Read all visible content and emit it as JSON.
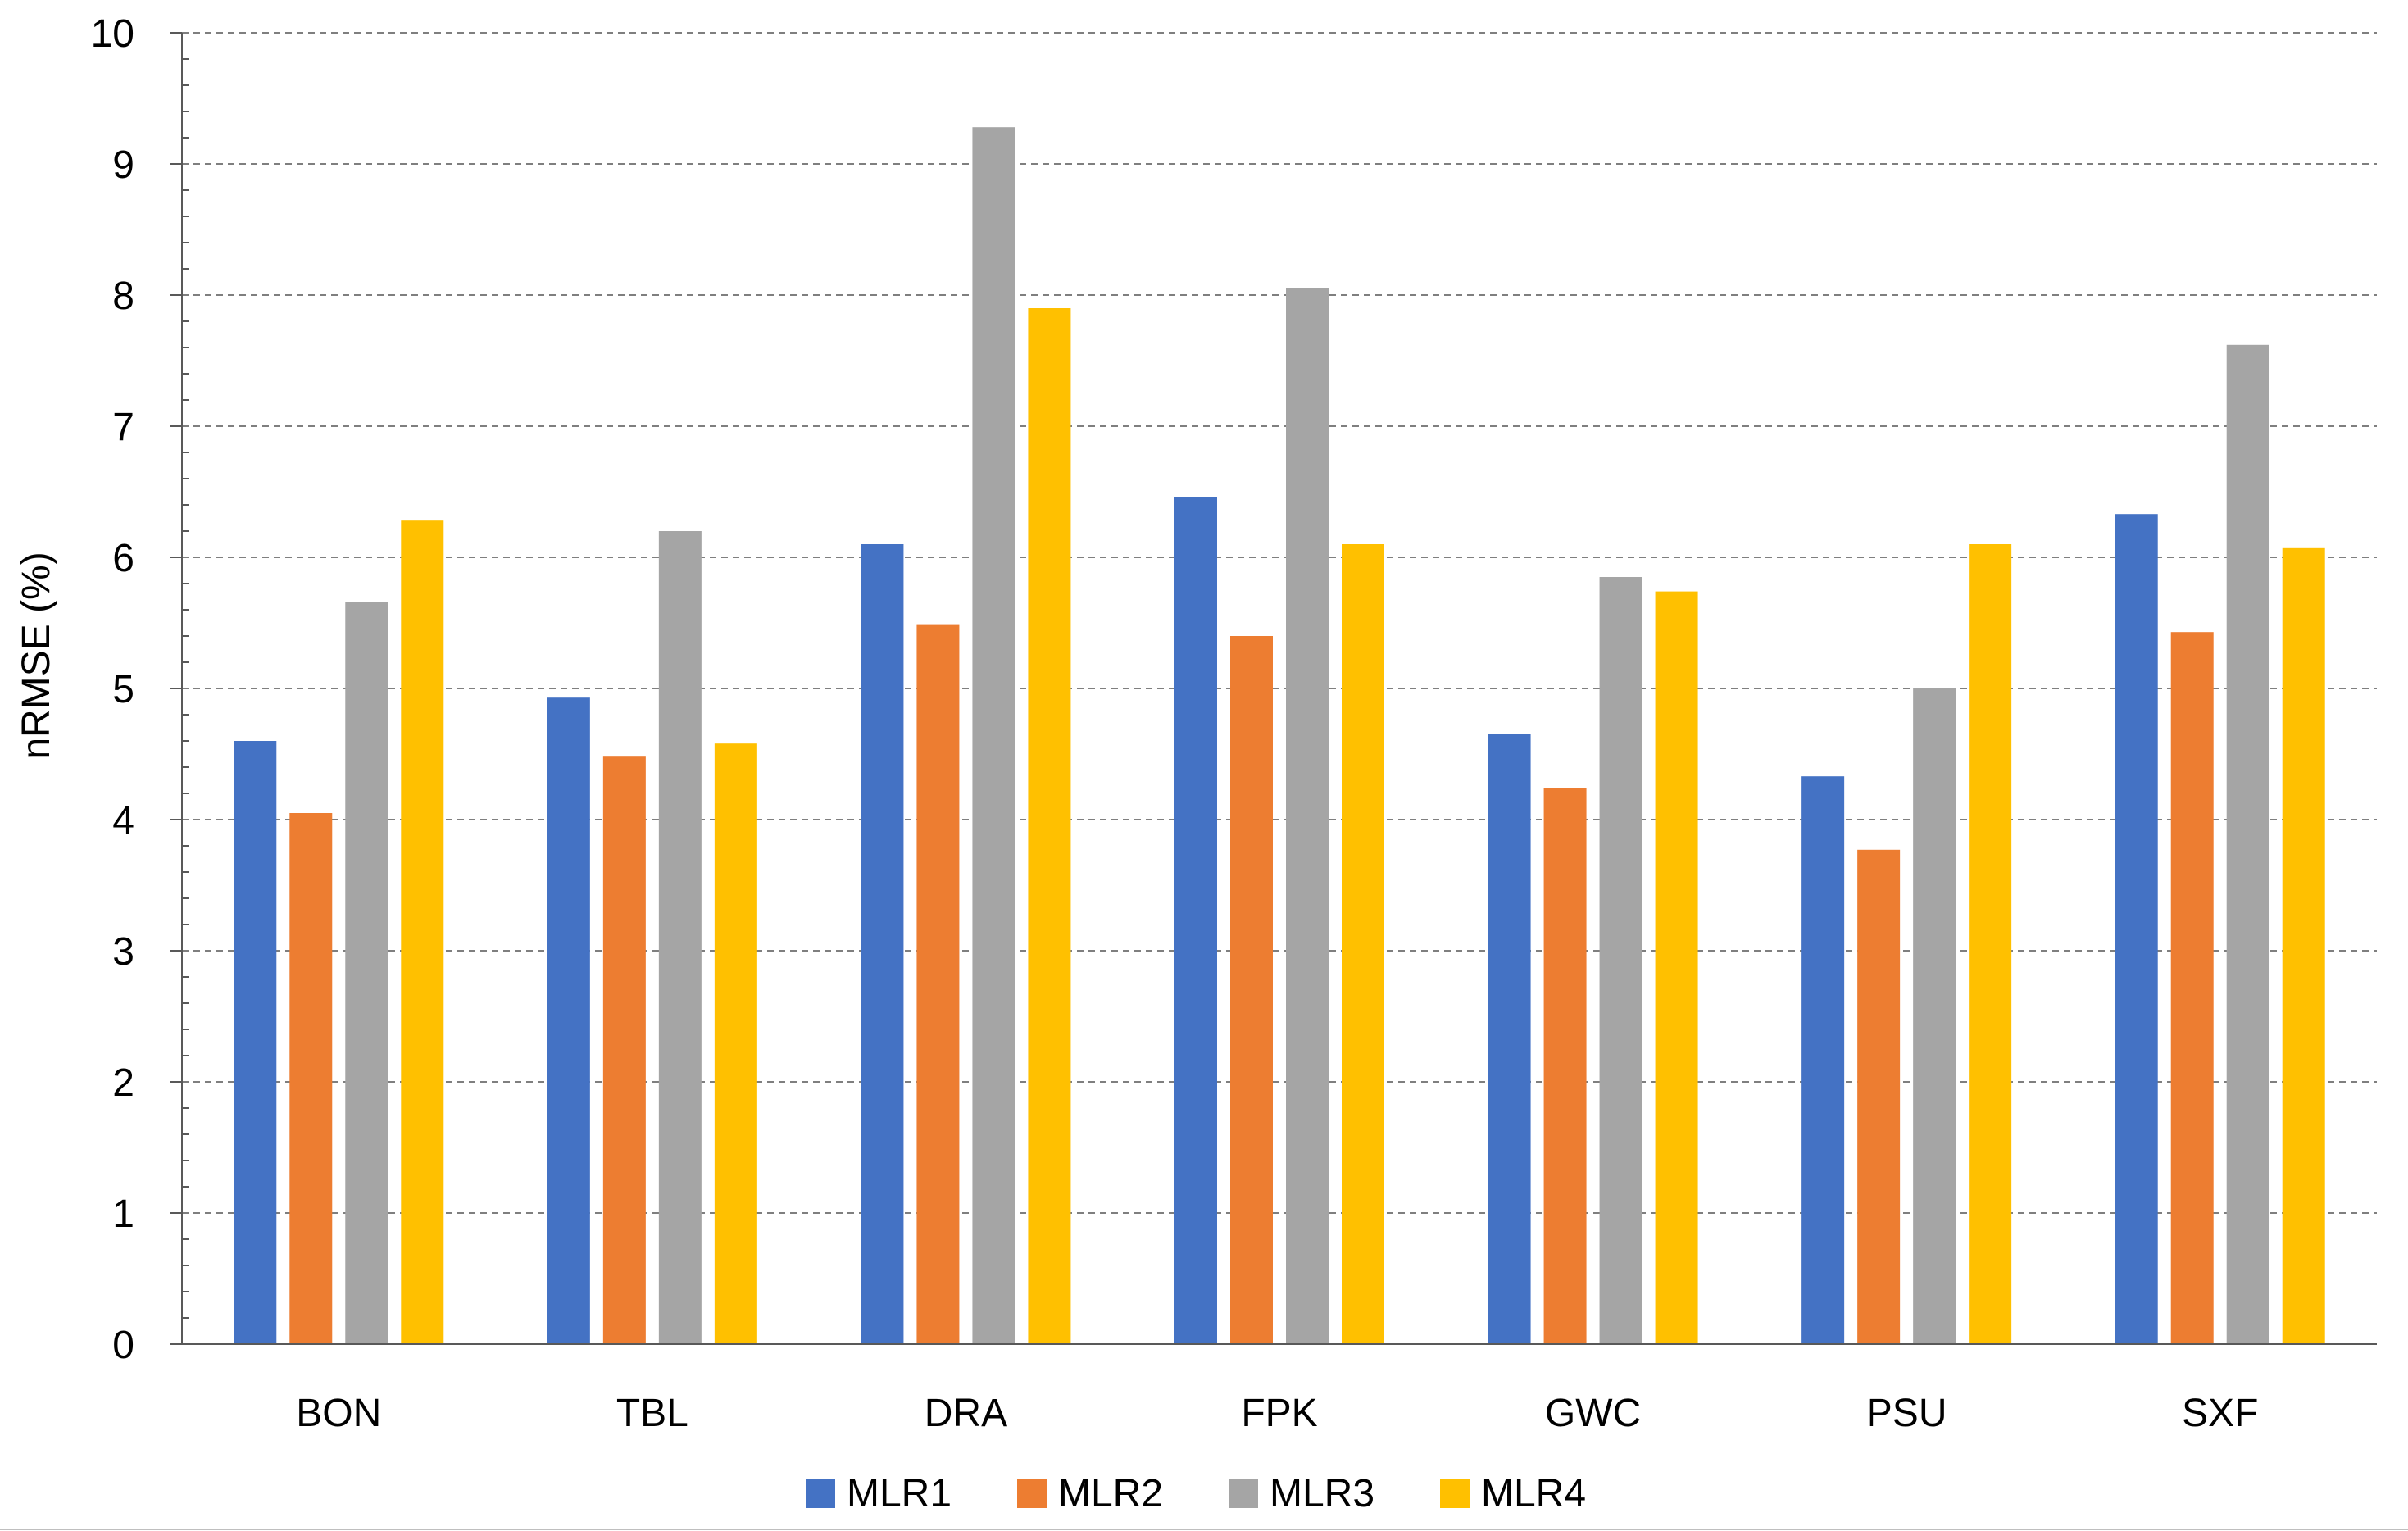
{
  "chart_data": {
    "type": "bar",
    "title": "",
    "xlabel": "",
    "ylabel": "nRMSE (%)",
    "ylim": [
      0,
      10
    ],
    "yticks": [
      0,
      1,
      2,
      3,
      4,
      5,
      6,
      7,
      8,
      9,
      10
    ],
    "grid": true,
    "legend_position": "bottom-center",
    "categories": [
      "BON",
      "TBL",
      "DRA",
      "FPK",
      "GWC",
      "PSU",
      "SXF"
    ],
    "series": [
      {
        "name": "MLR1",
        "color": "#4472C4",
        "values": [
          4.6,
          4.93,
          6.1,
          6.46,
          4.65,
          4.33,
          6.33
        ]
      },
      {
        "name": "MLR2",
        "color": "#ED7D31",
        "values": [
          4.05,
          4.48,
          5.49,
          5.4,
          4.24,
          3.77,
          5.43
        ]
      },
      {
        "name": "MLR3",
        "color": "#A5A5A5",
        "values": [
          5.66,
          6.2,
          9.28,
          8.05,
          5.85,
          5.0,
          7.62
        ]
      },
      {
        "name": "MLR4",
        "color": "#FFC000",
        "values": [
          6.28,
          4.58,
          7.9,
          6.1,
          5.74,
          6.1,
          6.07
        ]
      }
    ]
  }
}
